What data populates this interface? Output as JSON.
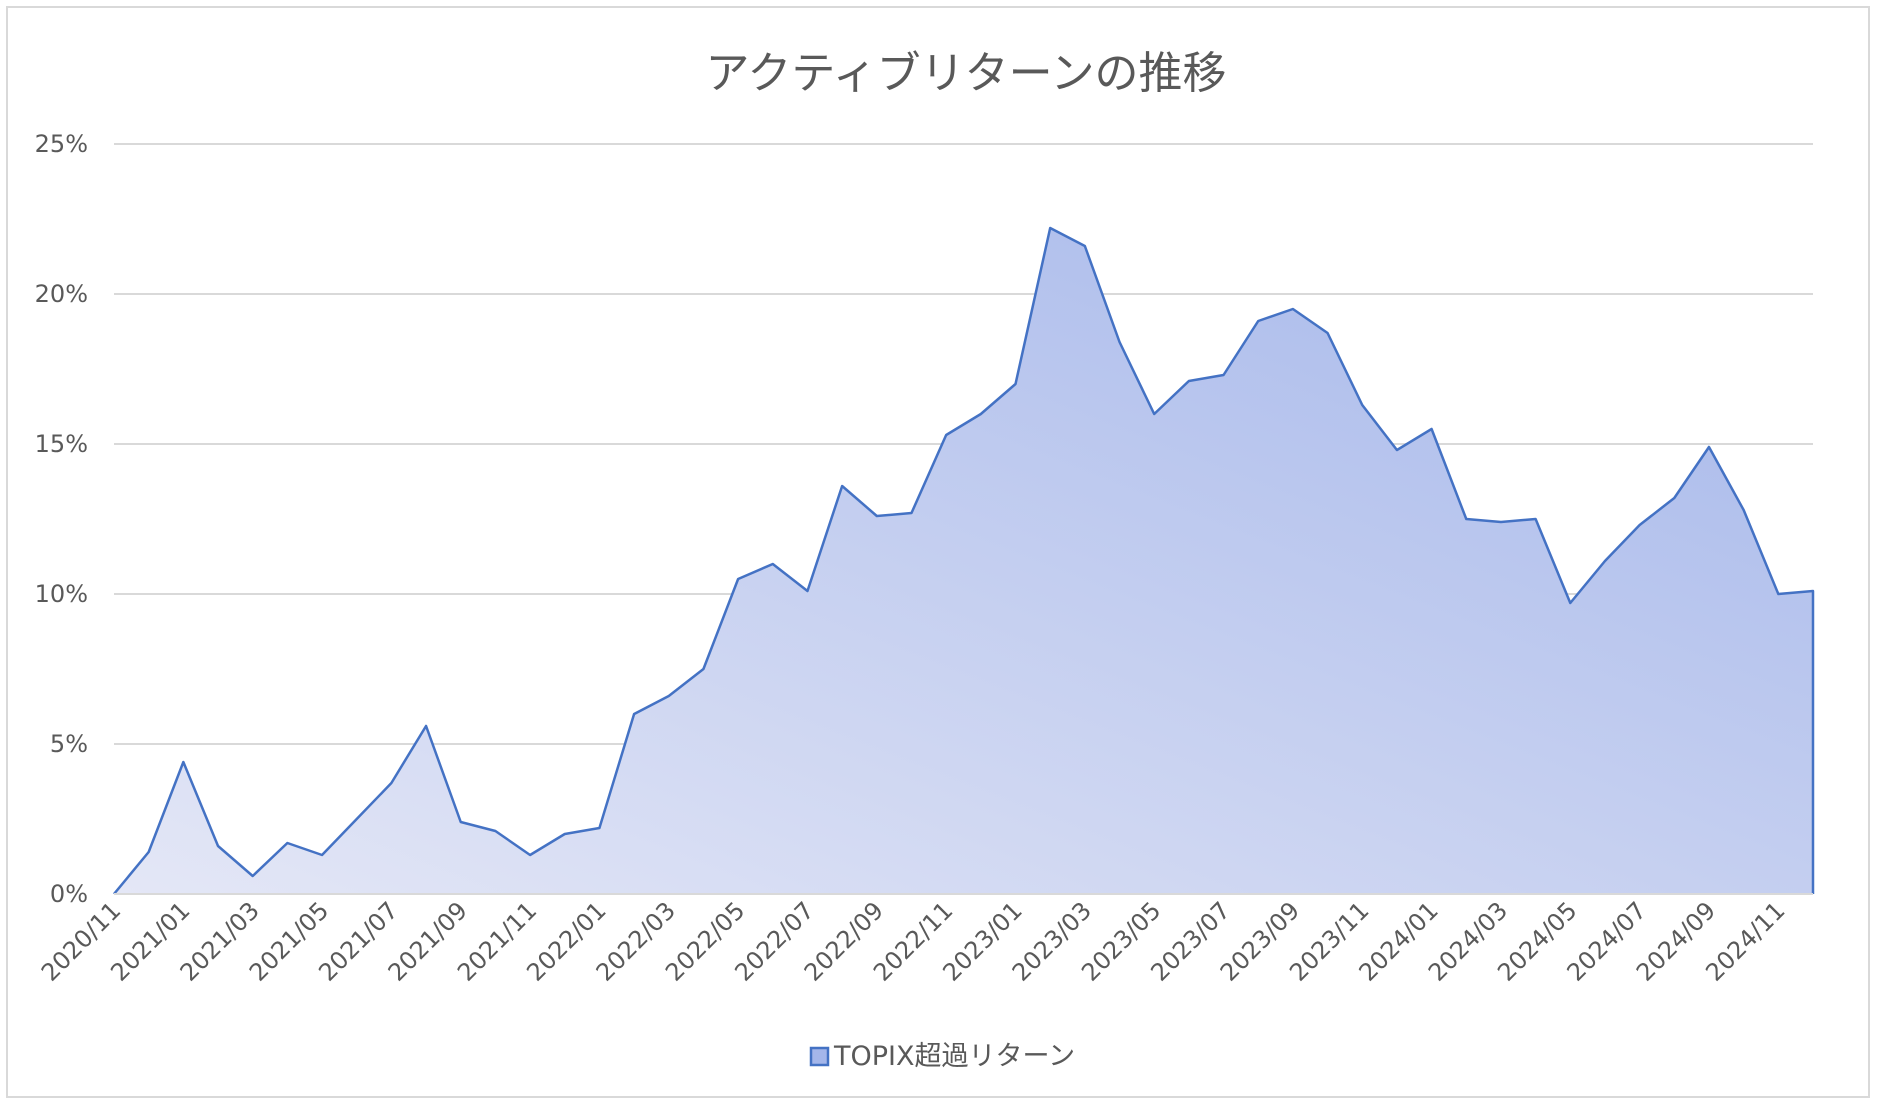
{
  "chart_data": {
    "type": "area",
    "title": "アクティブリターンの推移",
    "xlabel": "",
    "ylabel": "",
    "ylim": [
      0,
      0.25
    ],
    "y_ticks": [
      0,
      0.05,
      0.1,
      0.15,
      0.2,
      0.25
    ],
    "y_tick_labels": [
      "0%",
      "5%",
      "10%",
      "15%",
      "20%",
      "25%"
    ],
    "x_tick_labels": [
      "2020/11",
      "2021/01",
      "2021/03",
      "2021/05",
      "2021/07",
      "2021/09",
      "2021/11",
      "2022/01",
      "2022/03",
      "2022/05",
      "2022/07",
      "2022/09",
      "2022/11",
      "2023/01",
      "2023/03",
      "2023/05",
      "2023/07",
      "2023/09",
      "2023/11",
      "2024/01",
      "2024/03",
      "2024/05",
      "2024/07",
      "2024/09",
      "2024/11"
    ],
    "x": [
      "2020/11",
      "2020/12",
      "2021/01",
      "2021/02",
      "2021/03",
      "2021/04",
      "2021/05",
      "2021/06",
      "2021/07",
      "2021/08",
      "2021/09",
      "2021/10",
      "2021/11",
      "2021/12",
      "2022/01",
      "2022/02",
      "2022/03",
      "2022/04",
      "2022/05",
      "2022/06",
      "2022/07",
      "2022/08",
      "2022/09",
      "2022/10",
      "2022/11",
      "2022/12",
      "2023/01",
      "2023/02",
      "2023/03",
      "2023/04",
      "2023/05",
      "2023/06",
      "2023/07",
      "2023/08",
      "2023/09",
      "2023/10",
      "2023/11",
      "2023/12",
      "2024/01",
      "2024/02",
      "2024/03",
      "2024/04",
      "2024/05",
      "2024/06",
      "2024/07",
      "2024/08",
      "2024/09",
      "2024/10",
      "2024/11",
      "2024/12"
    ],
    "series": [
      {
        "name": "TOPIX超過リターン",
        "values": [
          0.0,
          0.014,
          0.044,
          0.016,
          0.006,
          0.017,
          0.013,
          0.025,
          0.037,
          0.056,
          0.024,
          0.021,
          0.013,
          0.02,
          0.022,
          0.06,
          0.066,
          0.075,
          0.105,
          0.11,
          0.101,
          0.136,
          0.126,
          0.127,
          0.153,
          0.16,
          0.17,
          0.222,
          0.216,
          0.184,
          0.16,
          0.171,
          0.173,
          0.191,
          0.195,
          0.187,
          0.163,
          0.148,
          0.155,
          0.125,
          0.124,
          0.125,
          0.097,
          0.111,
          0.123,
          0.132,
          0.149,
          0.128,
          0.1,
          0.101
        ]
      }
    ],
    "colors": {
      "line": "#4472c4",
      "fill_light": "#e4e7f6",
      "fill_dark": "#a4b6ea",
      "grid": "#d9d9d9",
      "text": "#595959"
    },
    "legend_position": "bottom",
    "grid": true
  }
}
